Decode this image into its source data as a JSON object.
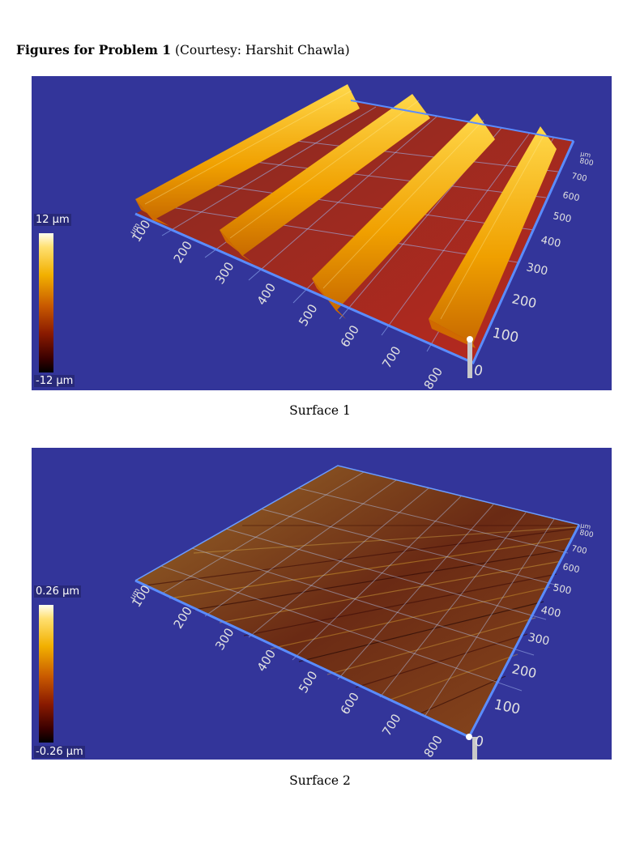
{
  "heading": {
    "bold": "Figures for Problem 1",
    "rest": "(Courtesy: Harshit Chawla)"
  },
  "figures": [
    {
      "caption": "Surface 1",
      "colorbar": {
        "max_label": "12 µm",
        "min_label": "-12 µm"
      },
      "axis_front": {
        "unit": "µm",
        "ticks": [
          "100",
          "200",
          "300",
          "400",
          "500",
          "600",
          "700",
          "800"
        ]
      },
      "axis_right": {
        "unit": "µm",
        "ticks": [
          "0",
          "100",
          "200",
          "300",
          "400",
          "500",
          "600",
          "700",
          "800"
        ]
      }
    },
    {
      "caption": "Surface 2",
      "colorbar": {
        "max_label": "0.26 µm",
        "min_label": "-0.26 µm"
      },
      "axis_front": {
        "unit": "µm",
        "ticks": [
          "100",
          "200",
          "300",
          "400",
          "500",
          "600",
          "700",
          "800"
        ]
      },
      "axis_right": {
        "unit": "µm",
        "ticks": [
          "0",
          "100",
          "200",
          "300",
          "400",
          "500",
          "600",
          "700",
          "800"
        ]
      }
    }
  ],
  "colors": {
    "background": "#33359a",
    "grid": "#7fb0ff",
    "ridge": "#f0a800",
    "valley": "#b0201a"
  }
}
